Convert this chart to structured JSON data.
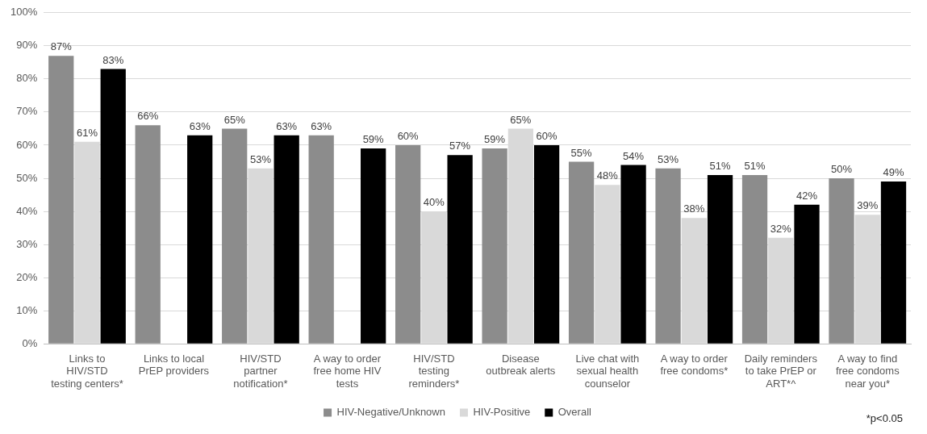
{
  "chart_data": {
    "type": "bar",
    "categories": [
      "Links to HIV/STD testing centers*",
      "Links to local PrEP providers",
      "HIV/STD partner notification*",
      "A way to order free home HIV tests",
      "HIV/STD testing reminders*",
      "Disease outbreak alerts",
      "Live chat with sexual health counselor",
      "A way to order free condoms*",
      "Daily reminders to take PrEP or ART*^",
      "A way to find free condoms near you*"
    ],
    "series": [
      {
        "name": "HIV-Negative/Unknown",
        "color": "#8c8c8c",
        "values": [
          87,
          66,
          65,
          63,
          60,
          59,
          55,
          53,
          51,
          50
        ],
        "value_labels": [
          "87%",
          "66%",
          "65%",
          "63%",
          "60%",
          "59%",
          "55%",
          "53%",
          "51%",
          "50%"
        ]
      },
      {
        "name": "HIV-Positive",
        "color": "#d9d9d9",
        "values": [
          61,
          null,
          53,
          null,
          40,
          65,
          48,
          38,
          32,
          39
        ],
        "value_labels": [
          "61%",
          null,
          "53%",
          null,
          "40%",
          "65%",
          "48%",
          "38%",
          "32%",
          "39%"
        ]
      },
      {
        "name": "Overall",
        "color": "#000000",
        "values": [
          83,
          63,
          63,
          59,
          57,
          60,
          54,
          51,
          42,
          49
        ],
        "value_labels": [
          "83%",
          "63%",
          "63%",
          "59%",
          "57%",
          "60%",
          "54%",
          "51%",
          "42%",
          "49%"
        ]
      }
    ],
    "ylim": [
      0,
      100
    ],
    "yticks": [
      {
        "value": 0,
        "label": "0%"
      },
      {
        "value": 10,
        "label": "10%"
      },
      {
        "value": 20,
        "label": "20%"
      },
      {
        "value": 30,
        "label": "30%"
      },
      {
        "value": 40,
        "label": "40%"
      },
      {
        "value": 50,
        "label": "50%"
      },
      {
        "value": 60,
        "label": "60%"
      },
      {
        "value": 70,
        "label": "70%"
      },
      {
        "value": 80,
        "label": "80%"
      },
      {
        "value": 90,
        "label": "90%"
      },
      {
        "value": 100,
        "label": "100%"
      }
    ],
    "grid": "y",
    "legend": "bottom",
    "annotations": [
      "*p<0.05"
    ]
  }
}
